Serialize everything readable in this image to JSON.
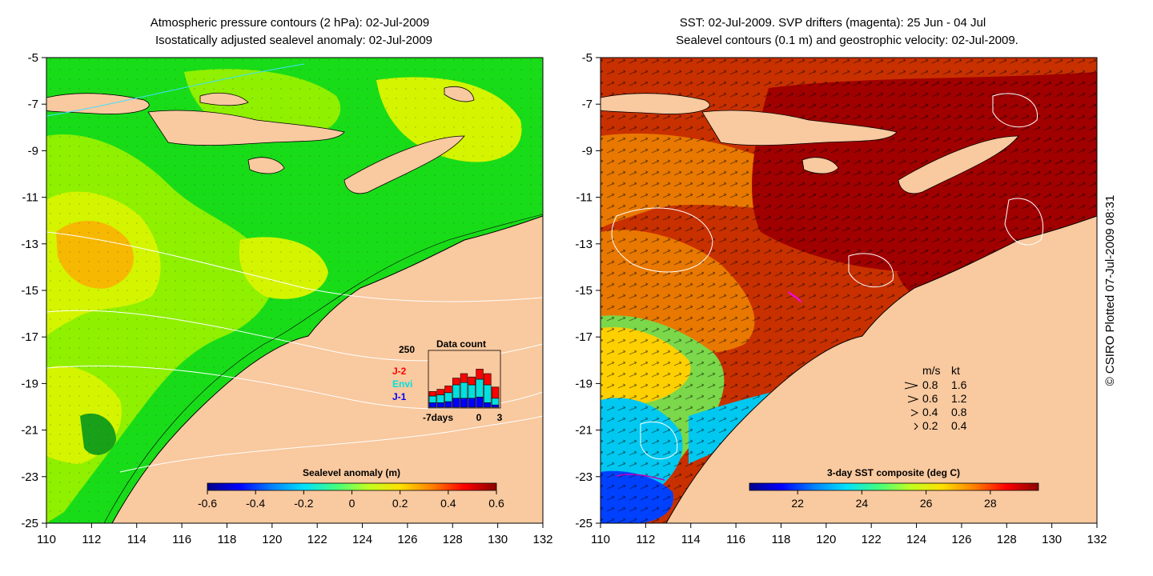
{
  "left_panel": {
    "title_line1": "Atmospheric pressure contours (2 hPa): 02-Jul-2009",
    "title_line2": "Isostatically adjusted sealevel anomaly: 02-Jul-2009",
    "colorbar": {
      "label": "Sealevel anomaly (m)",
      "ticks": [
        "-0.6",
        "-0.4",
        "-0.2",
        "0",
        "0.2",
        "0.4",
        "0.6"
      ],
      "range": [
        -0.6,
        0.6
      ],
      "colormap": [
        "#00008b",
        "#0000ff",
        "#0080ff",
        "#00e0ff",
        "#40ff80",
        "#c0ff20",
        "#ffe000",
        "#ff8000",
        "#ff0000",
        "#8b0000"
      ]
    },
    "data_count_inset": {
      "title": "Data count",
      "ymax_label": "250",
      "x_labels": [
        "-7days",
        "0",
        "3"
      ],
      "legend": [
        {
          "name": "J-2",
          "color": "#ff0000"
        },
        {
          "name": "Envi",
          "color": "#00e0e0"
        },
        {
          "name": "J-1",
          "color": "#0000ff"
        }
      ],
      "bars": [
        {
          "j1": 20,
          "envi": 30,
          "j2": 20
        },
        {
          "j1": 20,
          "envi": 35,
          "j2": 25
        },
        {
          "j1": 25,
          "envi": 40,
          "j2": 30
        },
        {
          "j1": 40,
          "envi": 60,
          "j2": 30
        },
        {
          "j1": 40,
          "envi": 70,
          "j2": 40
        },
        {
          "j1": 40,
          "envi": 60,
          "j2": 35
        },
        {
          "j1": 45,
          "envi": 80,
          "j2": 45
        },
        {
          "j1": 20,
          "envi": 80,
          "j2": 50
        },
        {
          "j1": 10,
          "envi": 30,
          "j2": 50
        }
      ]
    }
  },
  "right_panel": {
    "title_line1": "SST: 02-Jul-2009. SVP drifters (magenta): 25 Jun - 04 Jul",
    "title_line2": "Sealevel contours (0.1 m) and geostrophic velocity: 02-Jul-2009.",
    "colorbar": {
      "label": "3-day SST composite (deg C)",
      "ticks": [
        "22",
        "24",
        "26",
        "28"
      ],
      "range": [
        20.5,
        29.5
      ],
      "colormap": [
        "#00008b",
        "#0000ff",
        "#0080ff",
        "#00e0ff",
        "#40ff80",
        "#c0ff20",
        "#ffe000",
        "#ff8000",
        "#ff0000",
        "#8b0000"
      ]
    },
    "velocity_legend": {
      "headers": [
        "m/s",
        "kt"
      ],
      "rows": [
        {
          "ms": "0.8",
          "kt": "1.6"
        },
        {
          "ms": "0.6",
          "kt": "1.2"
        },
        {
          "ms": "0.4",
          "kt": "0.8"
        },
        {
          "ms": "0.2",
          "kt": "0.4"
        }
      ]
    }
  },
  "axes": {
    "x_ticks": [
      "110",
      "112",
      "114",
      "116",
      "118",
      "120",
      "122",
      "124",
      "126",
      "128",
      "130",
      "132"
    ],
    "y_ticks": [
      "-5",
      "-7",
      "-9",
      "-11",
      "-13",
      "-15",
      "-17",
      "-19",
      "-21",
      "-23",
      "-25"
    ]
  },
  "credit": "© CSIRO Plotted 07-Jul-2009 08:31",
  "colors": {
    "land": "#f9c99f",
    "sla_green": "#19dc19",
    "sla_light": "#8ff000",
    "sla_yellow": "#d4f400",
    "sla_orange": "#f6b800",
    "sst_dark": "#a00000",
    "sst_red": "#c83000",
    "sst_orange": "#e87800"
  }
}
